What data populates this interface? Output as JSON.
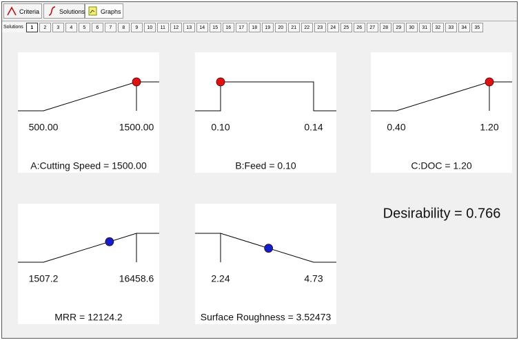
{
  "toolbar": {
    "tabs": [
      "Criteria",
      "Solutions",
      "Graphs"
    ]
  },
  "solutions_bar": {
    "label": "Solutions",
    "numbers": [
      1,
      2,
      3,
      4,
      5,
      6,
      7,
      8,
      9,
      10,
      11,
      12,
      13,
      14,
      15,
      16,
      17,
      18,
      19,
      20,
      21,
      22,
      23,
      24,
      25,
      26,
      27,
      28,
      29,
      30,
      31,
      32,
      33,
      34,
      35
    ],
    "selected": 0
  },
  "panels": [
    {
      "shape": "ramp-up",
      "low": {
        "value": 500,
        "label": "500.00"
      },
      "high": {
        "value": 1500,
        "label": "1500.00"
      },
      "value": 1500,
      "caption": "A:Cutting Speed = 1500.00",
      "dot_color": "#e01010"
    },
    {
      "shape": "range",
      "low": {
        "value": 0.1,
        "label": "0.10"
      },
      "high": {
        "value": 0.14,
        "label": "0.14"
      },
      "value": 0.1,
      "caption": "B:Feed = 0.10",
      "dot_color": "#e01010"
    },
    {
      "shape": "ramp-up",
      "low": {
        "value": 0.4,
        "label": "0.40"
      },
      "high": {
        "value": 1.2,
        "label": "1.20"
      },
      "value": 1.2,
      "caption": "C:DOC = 1.20",
      "dot_color": "#e01010"
    },
    {
      "shape": "ramp-up",
      "low": 1507.2,
      "high": 16458.6,
      "value": 12124.2,
      "caption": "MRR = 12124.2",
      "dot_color": "#1020d0"
    },
    {
      "shape": "ramp-down",
      "low": 2.24,
      "high": 4.73,
      "value": 3.52473,
      "caption": "Surface Roughness = 3.52473",
      "dot_color": "#1020d0"
    }
  ],
  "desirability": "Desirability = 0.766"
}
